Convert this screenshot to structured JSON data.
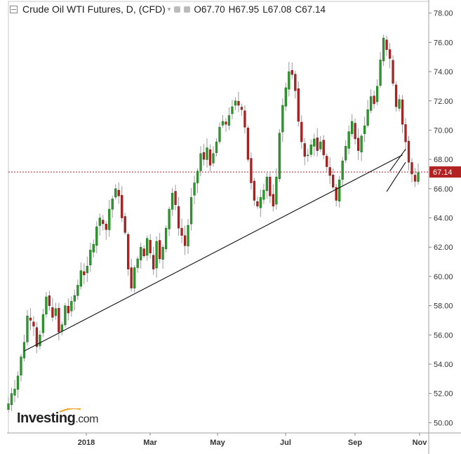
{
  "header": {
    "title": "Crude Oil WTI Futures, D, (CFD)",
    "ohlc": [
      {
        "label": "O",
        "value": "67.70"
      },
      {
        "label": "H",
        "value": "67.95"
      },
      {
        "label": "L",
        "value": "67.08"
      },
      {
        "label": "C",
        "value": "67.14"
      }
    ]
  },
  "logo": {
    "name": "Investing",
    "domain": ".com"
  },
  "colors": {
    "up": "#2a9a2a",
    "down": "#b22222",
    "wick": "#9a9a9a",
    "current_line": "#b22222",
    "trend": "#111111"
  },
  "chart_data": {
    "type": "candlestick",
    "current_price": {
      "value": 67.14,
      "label": "67.14"
    },
    "y_axis": {
      "min": 49.3,
      "max": 78.8,
      "ticks": [
        "50.00",
        "52.00",
        "54.00",
        "56.00",
        "58.00",
        "60.00",
        "62.00",
        "64.00",
        "66.00",
        "68.00",
        "70.00",
        "72.00",
        "74.00",
        "76.00",
        "78.00"
      ]
    },
    "x_axis": {
      "labels": [
        {
          "text": "2018",
          "pos": 113
        },
        {
          "text": "Mar",
          "pos": 204
        },
        {
          "text": "May",
          "pos": 300
        },
        {
          "text": "Jul",
          "pos": 397
        },
        {
          "text": "Sep",
          "pos": 496
        },
        {
          "text": "Nov",
          "pos": 588
        }
      ]
    },
    "closes": [
      51.3,
      52.0,
      52.3,
      53.2,
      54.5,
      55.5,
      57.3,
      57.0,
      56.6,
      55.2,
      56.0,
      57.4,
      58.6,
      58.0,
      57.2,
      57.8,
      56.2,
      56.7,
      58.0,
      57.5,
      58.3,
      58.7,
      59.4,
      60.4,
      60.1,
      60.7,
      61.8,
      62.2,
      63.4,
      64.0,
      63.6,
      63.2,
      64.6,
      65.3,
      66.0,
      65.5,
      64.0,
      63.0,
      60.5,
      59.2,
      60.6,
      61.2,
      62.0,
      61.4,
      62.6,
      61.6,
      60.5,
      62.4,
      61.2,
      62.0,
      63.3,
      64.6,
      65.7,
      64.9,
      63.3,
      62.8,
      62.1,
      63.5,
      65.4,
      66.4,
      67.2,
      68.4,
      68.0,
      68.8,
      67.6,
      68.4,
      69.2,
      70.2,
      70.6,
      70.4,
      71.0,
      71.6,
      72.0,
      71.7,
      71.4,
      70.2,
      68.0,
      66.4,
      65.2,
      64.8,
      65.4,
      65.9,
      66.8,
      65.5,
      64.8,
      66.8,
      69.8,
      71.7,
      72.9,
      74.0,
      73.8,
      72.7,
      70.6,
      69.2,
      68.2,
      68.3,
      69.0,
      69.4,
      68.6,
      69.2,
      68.3,
      67.5,
      66.9,
      66.1,
      65.2,
      66.6,
      67.9,
      68.9,
      69.9,
      70.6,
      69.4,
      68.6,
      69.6,
      70.3,
      71.4,
      72.3,
      71.8,
      73.0,
      74.8,
      76.3,
      75.5,
      74.9,
      73.2,
      71.6,
      72.1,
      70.4,
      69.2,
      67.8,
      67.0,
      66.5,
      67.1
    ],
    "trendlines": [
      {
        "from": {
          "i": 5,
          "v": 54.9
        },
        "to": {
          "i": 125,
          "v": 68.3
        }
      },
      {
        "from": {
          "i": 121,
          "v": 67.2
        },
        "to": {
          "i": 126,
          "v": 68.7
        }
      },
      {
        "from": {
          "i": 120,
          "v": 65.8
        },
        "to": {
          "i": 126,
          "v": 67.8
        }
      }
    ]
  }
}
